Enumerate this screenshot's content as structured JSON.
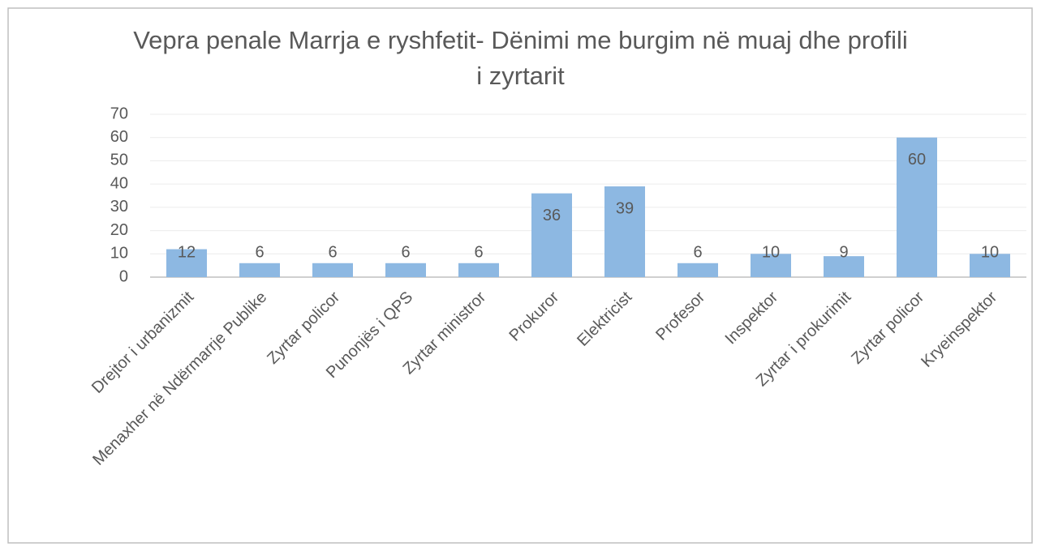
{
  "chart_data": {
    "type": "bar",
    "title": "Vepra penale Marrja e ryshfetit- Dënimi me burgim në muaj dhe profili i zyrtarit",
    "categories": [
      "Drejtor i urbanizmit",
      "Menaxher në Ndërmarrje Publike",
      "Zyrtar policor",
      "Punonjës i QPS",
      "Zyrtar ministror",
      "Prokuror",
      "Elektricist",
      "Profesor",
      "Inspektor",
      "Zyrtar i prokurimit",
      "Zyrtar policor",
      "Kryeinspektor"
    ],
    "values": [
      12,
      6,
      6,
      6,
      6,
      36,
      39,
      6,
      10,
      9,
      60,
      10
    ],
    "color": "#8db8e2",
    "ylim": [
      0,
      70
    ],
    "yticks": [
      0,
      10,
      20,
      30,
      40,
      50,
      60,
      70
    ],
    "grid": true
  }
}
